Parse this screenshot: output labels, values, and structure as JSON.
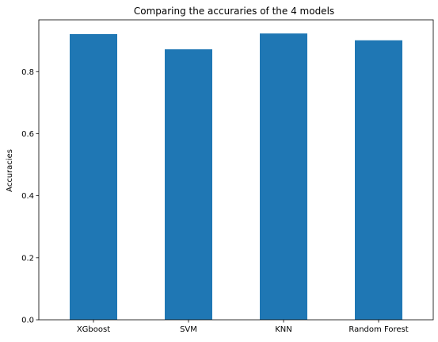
{
  "chart_data": {
    "type": "bar",
    "title": "Comparing the accuraries of the 4 models",
    "xlabel": "",
    "ylabel": "Accuracies",
    "categories": [
      "XGboost",
      "SVM",
      "KNN",
      "Random Forest"
    ],
    "values": [
      0.921,
      0.872,
      0.923,
      0.901
    ],
    "ylim": [
      0,
      0.967
    ],
    "yticks": [
      0.0,
      0.2,
      0.4,
      0.6,
      0.8
    ],
    "ytick_labels": [
      "0.0",
      "0.2",
      "0.4",
      "0.6",
      "0.8"
    ],
    "grid": false,
    "bar_color": "#1f77b4"
  }
}
